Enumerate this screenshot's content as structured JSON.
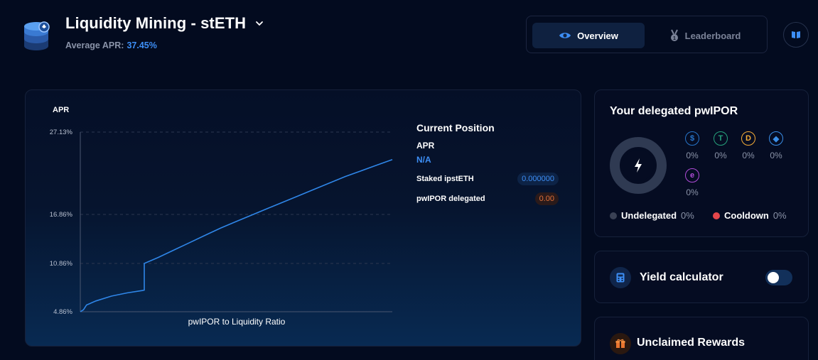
{
  "header": {
    "title": "Liquidity Mining - stETH",
    "avg_apr_label": "Average APR:",
    "avg_apr_value": "37.45%"
  },
  "tabs": [
    {
      "label": "Overview",
      "icon": "eye-icon",
      "active": true
    },
    {
      "label": "Leaderboard",
      "icon": "medal-icon",
      "active": false
    }
  ],
  "chart_data": {
    "type": "line",
    "ylabel": "APR",
    "xlabel": "pwIPOR to Liquidity Ratio",
    "y_ticks": [
      "27.13%",
      "16.86%",
      "10.86%",
      "4.86%"
    ],
    "ylim": [
      4.86,
      27.13
    ],
    "x_range": [
      0,
      1
    ],
    "grid": "horizontal dashed",
    "series": [
      {
        "points": [
          [
            0,
            4.86
          ],
          [
            0.01,
            5.1
          ],
          [
            0.02,
            5.7
          ],
          [
            0.05,
            6.2
          ],
          [
            0.1,
            6.8
          ],
          [
            0.15,
            7.2
          ],
          [
            0.2,
            7.5
          ],
          [
            0.205,
            7.55
          ],
          [
            0.205,
            10.86
          ],
          [
            0.25,
            11.6
          ],
          [
            0.3,
            12.5
          ],
          [
            0.35,
            13.4
          ],
          [
            0.4,
            14.3
          ],
          [
            0.45,
            15.2
          ],
          [
            0.5,
            16.0
          ],
          [
            0.55,
            16.8
          ],
          [
            0.6,
            17.6
          ],
          [
            0.65,
            18.4
          ],
          [
            0.7,
            19.2
          ],
          [
            0.75,
            20.0
          ],
          [
            0.8,
            20.8
          ],
          [
            0.85,
            21.6
          ],
          [
            0.9,
            22.3
          ],
          [
            0.95,
            23.0
          ],
          [
            1.0,
            23.7
          ]
        ],
        "color": "#2f86e8"
      }
    ]
  },
  "current_position": {
    "title": "Current Position",
    "apr_label": "APR",
    "apr_value": "N/A",
    "staked_label": "Staked ipstETH",
    "staked_value": "0.000000",
    "delegated_label": "pwIPOR delegated",
    "delegated_value": "0.00"
  },
  "delegated": {
    "title": "Your delegated pwIPOR",
    "assets": [
      {
        "icon": "usdc-icon",
        "glyph": "$",
        "color": "#2775ca",
        "pct": "0%"
      },
      {
        "icon": "usdt-icon",
        "glyph": "T",
        "color": "#26a17b",
        "pct": "0%"
      },
      {
        "icon": "dai-icon",
        "glyph": "D",
        "color": "#f5ac37",
        "pct": "0%"
      },
      {
        "icon": "steth-icon",
        "glyph": "◆",
        "color": "#3a8fe8",
        "pct": "0%"
      },
      {
        "icon": "weeth-icon",
        "glyph": "e",
        "color": "#b04cd8",
        "pct": "0%"
      }
    ],
    "undelegated_label": "Undelegated",
    "undelegated_pct": "0%",
    "cooldown_label": "Cooldown",
    "cooldown_pct": "0%",
    "colors": {
      "undelegated": "#3a4154",
      "cooldown": "#e5464b"
    }
  },
  "yield_calculator": {
    "title": "Yield calculator",
    "enabled": false
  },
  "rewards": {
    "title": "Unclaimed Rewards"
  }
}
